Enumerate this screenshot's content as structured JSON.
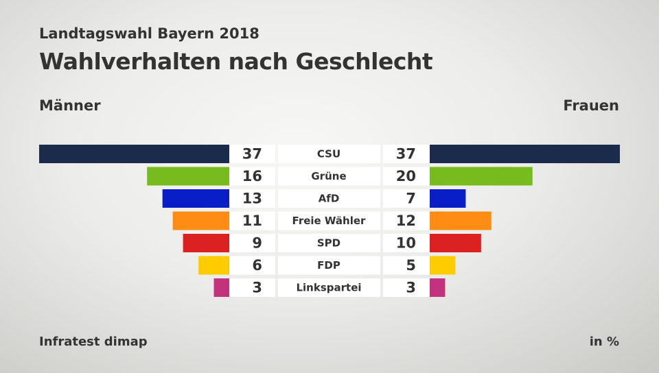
{
  "header": {
    "supertitle": "Landtagswahl Bayern 2018",
    "title": "Wahlverhalten nach Geschlecht"
  },
  "labels": {
    "left": "Männer",
    "right": "Frauen"
  },
  "footer": {
    "source": "Infratest dimap",
    "unit": "in %"
  },
  "chart_data": {
    "type": "bar",
    "orientation": "horizontal-diverging",
    "title": "Wahlverhalten nach Geschlecht",
    "categories": [
      "CSU",
      "Grüne",
      "AfD",
      "Freie Wähler",
      "SPD",
      "FDP",
      "Linkspartei"
    ],
    "colors": [
      "#1b2b4b",
      "#78bb1e",
      "#0a1ec8",
      "#ff8c14",
      "#dc2121",
      "#ffcc00",
      "#c2327d"
    ],
    "series": [
      {
        "name": "Männer",
        "values": [
          37,
          16,
          13,
          11,
          9,
          6,
          3
        ]
      },
      {
        "name": "Frauen",
        "values": [
          37,
          20,
          7,
          12,
          10,
          5,
          3
        ]
      }
    ],
    "xlim": [
      0,
      37
    ],
    "unit": "in %"
  }
}
